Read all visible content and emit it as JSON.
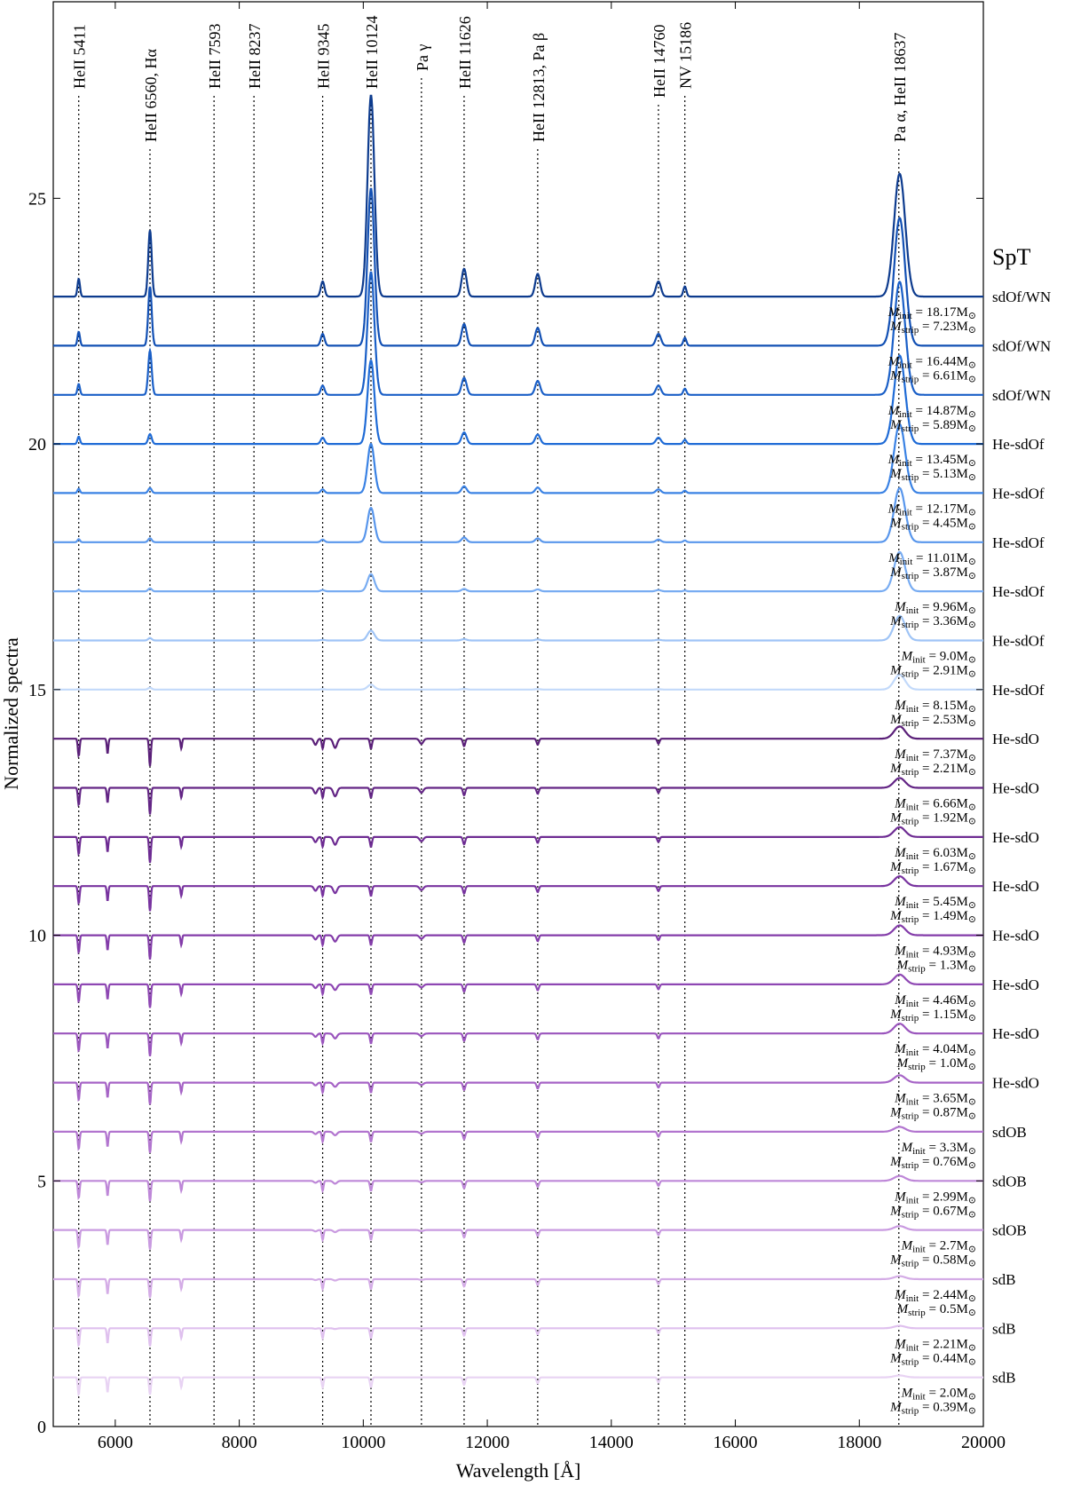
{
  "chart_data": {
    "type": "line",
    "title": "",
    "xlabel": "Wavelength [Å]",
    "ylabel": "Normalized spectra",
    "xlim": [
      5000,
      20000
    ],
    "ylim": [
      0,
      29
    ],
    "xticks": [
      6000,
      8000,
      10000,
      12000,
      14000,
      16000,
      18000,
      20000
    ],
    "yticks": [
      0,
      5,
      10,
      15,
      20,
      25
    ],
    "legend_title": "SpT",
    "lines": [
      {
        "label": "HeII 5411",
        "x": 5411
      },
      {
        "label": "HeII 6560, Hα",
        "x": 6560
      },
      {
        "label": "HeII 7593",
        "x": 7593
      },
      {
        "label": "HeII 8237",
        "x": 8237
      },
      {
        "label": "HeII 9345",
        "x": 9345
      },
      {
        "label": "HeII 10124",
        "x": 10124
      },
      {
        "label": "Pa γ",
        "x": 10938
      },
      {
        "label": "HeII 11626",
        "x": 11626
      },
      {
        "label": "HeII 12813, Pa β",
        "x": 12813
      },
      {
        "label": "HeII 14760",
        "x": 14760
      },
      {
        "label": "NV 15186",
        "x": 15186
      },
      {
        "label": "Pa α, HeII 18637",
        "x": 18637
      }
    ],
    "series": [
      {
        "offset": 23,
        "spt": "sdOf/WN",
        "m_init": "18.17",
        "m_strip": "7.23",
        "color": "#0d3b8e",
        "peak10124": 4.1,
        "peakPa": 2.5,
        "peakHa": 1.35
      },
      {
        "offset": 22,
        "spt": "sdOf/WN",
        "m_init": "16.44",
        "m_strip": "6.61",
        "color": "#1250b4",
        "peak10124": 3.2,
        "peakPa": 2.6,
        "peakHa": 1.2
      },
      {
        "offset": 21,
        "spt": "sdOf/WN",
        "m_init": "14.87",
        "m_strip": "5.89",
        "color": "#1a5fc7",
        "peak10124": 2.5,
        "peakPa": 2.3,
        "peakHa": 0.9
      },
      {
        "offset": 20,
        "spt": "He-sdOf",
        "m_init": "13.45",
        "m_strip": "5.13",
        "color": "#1f6bd6",
        "peak10124": 1.7,
        "peakPa": 1.8,
        "peakHa": 0.2
      },
      {
        "offset": 19,
        "spt": "He-sdOf",
        "m_init": "12.17",
        "m_strip": "4.45",
        "color": "#3a82e4",
        "peak10124": 1.0,
        "peakPa": 1.4,
        "peakHa": 0.1
      },
      {
        "offset": 18,
        "spt": "He-sdOf",
        "m_init": "11.01",
        "m_strip": "3.87",
        "color": "#5896ec",
        "peak10124": 0.7,
        "peakPa": 1.1,
        "peakHa": 0.08
      },
      {
        "offset": 17,
        "spt": "He-sdOf",
        "m_init": "9.96",
        "m_strip": "3.36",
        "color": "#78acf2",
        "peak10124": 0.35,
        "peakPa": 0.8,
        "peakHa": 0.06
      },
      {
        "offset": 16,
        "spt": "He-sdOf",
        "m_init": "9.0",
        "m_strip": "2.91",
        "color": "#9fc4f6",
        "peak10124": 0.2,
        "peakPa": 0.5,
        "peakHa": 0.05
      },
      {
        "offset": 15,
        "spt": "He-sdOf",
        "m_init": "8.15",
        "m_strip": "2.53",
        "color": "#c2d9fa",
        "peak10124": 0.1,
        "peakPa": 0.3,
        "peakHa": 0.04
      },
      {
        "offset": 14,
        "spt": "He-sdO",
        "m_init": "7.37",
        "m_strip": "2.21",
        "color": "#5a1f78",
        "peak10124": 0,
        "peakPa": 0.25,
        "peakHa": 0
      },
      {
        "offset": 13,
        "spt": "He-sdO",
        "m_init": "6.66",
        "m_strip": "1.92",
        "color": "#632585",
        "peak10124": 0,
        "peakPa": 0.2,
        "peakHa": 0
      },
      {
        "offset": 12,
        "spt": "He-sdO",
        "m_init": "6.03",
        "m_strip": "1.67",
        "color": "#6d2b92",
        "peak10124": 0,
        "peakPa": 0.2,
        "peakHa": 0
      },
      {
        "offset": 11,
        "spt": "He-sdO",
        "m_init": "5.45",
        "m_strip": "1.49",
        "color": "#78339f",
        "peak10124": 0,
        "peakPa": 0.2,
        "peakHa": 0
      },
      {
        "offset": 10,
        "spt": "He-sdO",
        "m_init": "4.93",
        "m_strip": "1.3",
        "color": "#833ca9",
        "peak10124": 0,
        "peakPa": 0.2,
        "peakHa": 0
      },
      {
        "offset": 9,
        "spt": "He-sdO",
        "m_init": "4.46",
        "m_strip": "1.15",
        "color": "#8e47b3",
        "peak10124": 0,
        "peakPa": 0.2,
        "peakHa": 0
      },
      {
        "offset": 8,
        "spt": "He-sdO",
        "m_init": "4.04",
        "m_strip": "1.0",
        "color": "#9a55bd",
        "peak10124": 0,
        "peakPa": 0.2,
        "peakHa": 0
      },
      {
        "offset": 7,
        "spt": "He-sdO",
        "m_init": "3.65",
        "m_strip": "0.87",
        "color": "#a664c6",
        "peak10124": 0,
        "peakPa": 0.15,
        "peakHa": 0
      },
      {
        "offset": 6,
        "spt": "sdOB",
        "m_init": "3.3",
        "m_strip": "0.76",
        "color": "#b275cf",
        "peak10124": 0,
        "peakPa": 0.1,
        "peakHa": 0
      },
      {
        "offset": 5,
        "spt": "sdOB",
        "m_init": "2.99",
        "m_strip": "0.67",
        "color": "#be87d8",
        "peak10124": 0,
        "peakPa": 0.1,
        "peakHa": 0
      },
      {
        "offset": 4,
        "spt": "sdOB",
        "m_init": "2.7",
        "m_strip": "0.58",
        "color": "#c99ae0",
        "peak10124": 0,
        "peakPa": 0.08,
        "peakHa": 0
      },
      {
        "offset": 3,
        "spt": "sdB",
        "m_init": "2.44",
        "m_strip": "0.5",
        "color": "#d4ace6",
        "peak10124": 0,
        "peakPa": 0.06,
        "peakHa": 0
      },
      {
        "offset": 2,
        "spt": "sdB",
        "m_init": "2.21",
        "m_strip": "0.44",
        "color": "#dfc0ee",
        "peak10124": 0,
        "peakPa": 0.05,
        "peakHa": 0
      },
      {
        "offset": 1,
        "spt": "sdB",
        "m_init": "2.0",
        "m_strip": "0.39",
        "color": "#e8d3f3",
        "peak10124": 0,
        "peakPa": 0.04,
        "peakHa": 0
      }
    ]
  }
}
